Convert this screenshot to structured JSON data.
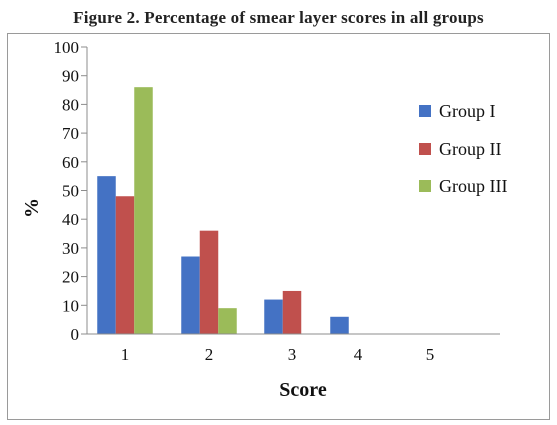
{
  "title": "Figure 2. Percentage of smear layer scores in all groups",
  "chart_data": {
    "type": "bar",
    "categories": [
      "1",
      "2",
      "3",
      "4",
      "5"
    ],
    "series": [
      {
        "name": "Group I",
        "color": "#4472C4",
        "values": [
          55,
          27,
          12,
          6,
          0
        ]
      },
      {
        "name": "Group II",
        "color": "#C0504D",
        "values": [
          48,
          36,
          15,
          0,
          0
        ]
      },
      {
        "name": "Group III",
        "color": "#9BBB59",
        "values": [
          86,
          9,
          0,
          0,
          0
        ]
      }
    ],
    "xlabel": "Score",
    "ylabel": "%",
    "ylim": [
      0,
      100
    ],
    "yticks": [
      "0",
      "10",
      "20",
      "30",
      "40",
      "50",
      "60",
      "70",
      "80",
      "90",
      "100"
    ],
    "grid": false,
    "legend_position": "right"
  }
}
